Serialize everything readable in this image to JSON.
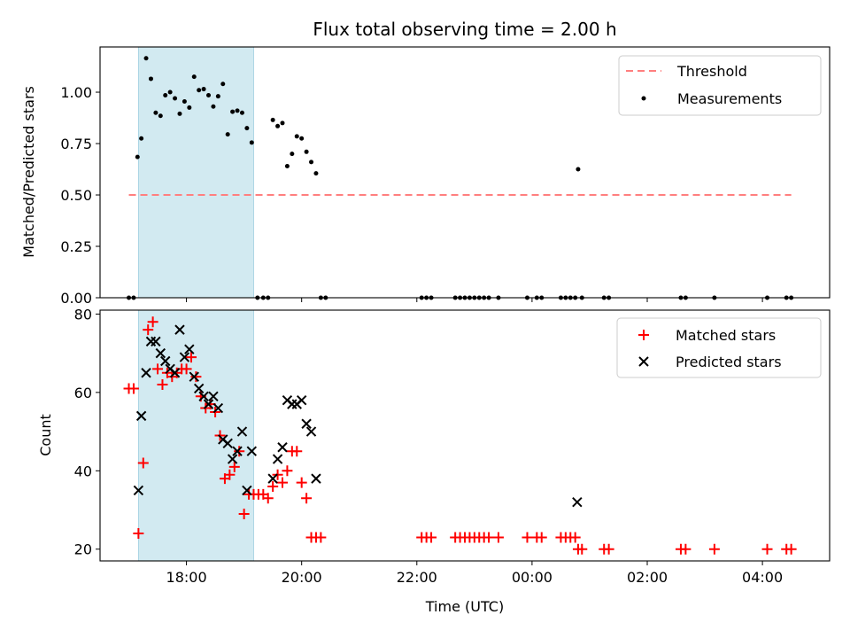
{
  "chart_data": {
    "title": "Flux total observing time = 2.00 h",
    "x_axis": {
      "label": "Time (UTC)",
      "range": [
        "16:30",
        "05:10"
      ],
      "ticks": [
        "18:00",
        "20:00",
        "22:00",
        "00:00",
        "02:00",
        "04:00"
      ]
    },
    "shaded_interval": [
      "17:10",
      "19:10"
    ],
    "shaded_color": "#add8e6",
    "panels": [
      {
        "type": "scatter",
        "ylabel": "Matched/Predicted stars",
        "ylim": [
          0,
          1.22
        ],
        "yticks": [
          "0.00",
          "0.25",
          "0.50",
          "0.75",
          "1.00"
        ],
        "series": [
          {
            "name": "Threshold",
            "kind": "line",
            "color": "#ff7f7f",
            "style": "dashed",
            "x": [
              "17:00",
              "04:30"
            ],
            "y": [
              0.5,
              0.5
            ]
          },
          {
            "name": "Measurements",
            "kind": "dot",
            "color": "#000000",
            "x": [
              "17:00",
              "17:05",
              "17:09",
              "17:13",
              "17:18",
              "17:23",
              "17:28",
              "17:33",
              "17:38",
              "17:43",
              "17:48",
              "17:53",
              "17:58",
              "18:03",
              "18:08",
              "18:13",
              "18:18",
              "18:23",
              "18:28",
              "18:33",
              "18:38",
              "18:43",
              "18:48",
              "18:53",
              "18:58",
              "19:03",
              "19:08",
              "19:14",
              "19:20",
              "19:25",
              "19:30",
              "19:35",
              "19:40",
              "19:45",
              "19:50",
              "19:55",
              "20:00",
              "20:05",
              "20:10",
              "20:15",
              "20:20",
              "20:25",
              "22:05",
              "22:10",
              "22:15",
              "22:40",
              "22:45",
              "22:50",
              "22:55",
              "23:00",
              "23:05",
              "23:10",
              "23:15",
              "23:25",
              "23:55",
              "00:05",
              "00:10",
              "00:30",
              "00:35",
              "00:40",
              "00:45",
              "00:48",
              "00:52",
              "01:15",
              "01:20",
              "02:35",
              "02:40",
              "03:10",
              "04:05",
              "04:25",
              "04:30"
            ],
            "y": [
              0,
              0,
              0.685,
              0.775,
              1.165,
              1.065,
              0.9,
              0.885,
              0.985,
              1.0,
              0.97,
              0.895,
              0.955,
              0.925,
              1.075,
              1.01,
              1.015,
              0.985,
              0.93,
              0.98,
              1.04,
              0.795,
              0.905,
              0.91,
              0.9,
              0.825,
              0.755,
              0,
              0,
              0,
              0.865,
              0.835,
              0.85,
              0.64,
              0.7,
              0.785,
              0.775,
              0.71,
              0.66,
              0.605,
              0,
              0,
              0,
              0,
              0,
              0,
              0,
              0,
              0,
              0,
              0,
              0,
              0,
              0,
              0,
              0,
              0,
              0,
              0,
              0,
              0,
              0.625,
              0,
              0,
              0,
              0,
              0,
              0,
              0,
              0,
              0
            ]
          }
        ]
      },
      {
        "type": "scatter",
        "ylabel": "Count",
        "ylim": [
          17,
          81
        ],
        "yticks": [
          "20",
          "40",
          "60",
          "80"
        ],
        "series": [
          {
            "name": "Matched stars",
            "kind": "plus",
            "color": "#ff0000",
            "x": [
              "17:00",
              "17:05",
              "17:10",
              "17:15",
              "17:20",
              "17:25",
              "17:30",
              "17:35",
              "17:40",
              "17:45",
              "17:50",
              "17:55",
              "18:00",
              "18:05",
              "18:10",
              "18:15",
              "18:20",
              "18:25",
              "18:30",
              "18:35",
              "18:40",
              "18:45",
              "18:50",
              "18:55",
              "19:00",
              "19:05",
              "19:10",
              "19:15",
              "19:20",
              "19:25",
              "19:30",
              "19:35",
              "19:40",
              "19:45",
              "19:50",
              "19:55",
              "20:00",
              "20:05",
              "20:10",
              "20:15",
              "20:20",
              "22:05",
              "22:10",
              "22:15",
              "22:40",
              "22:45",
              "22:50",
              "22:55",
              "23:00",
              "23:05",
              "23:10",
              "23:15",
              "23:25",
              "23:55",
              "00:05",
              "00:10",
              "00:30",
              "00:35",
              "00:40",
              "00:45",
              "00:48",
              "00:52",
              "01:15",
              "01:20",
              "02:35",
              "02:40",
              "03:10",
              "04:05",
              "04:25",
              "04:30"
            ],
            "y": [
              61,
              61,
              24,
              42,
              76,
              78,
              66,
              62,
              65,
              64,
              65,
              66,
              66,
              69,
              64,
              59,
              56,
              57,
              55,
              49,
              38,
              39,
              41,
              45,
              29,
              34,
              34,
              34,
              34,
              33,
              36,
              39,
              37,
              40,
              45,
              45,
              37,
              33,
              23,
              23,
              23,
              23,
              23,
              23,
              23,
              23,
              23,
              23,
              23,
              23,
              23,
              23,
              23,
              23,
              23,
              23,
              23,
              23,
              23,
              23,
              20,
              20,
              20,
              20,
              20,
              20,
              20,
              20,
              20,
              20
            ]
          },
          {
            "name": "Predicted stars",
            "kind": "x",
            "color": "#000000",
            "x": [
              "17:10",
              "17:13",
              "17:18",
              "17:23",
              "17:28",
              "17:33",
              "17:38",
              "17:43",
              "17:48",
              "17:53",
              "17:58",
              "18:03",
              "18:08",
              "18:13",
              "18:18",
              "18:23",
              "18:28",
              "18:33",
              "18:38",
              "18:43",
              "18:48",
              "18:53",
              "18:58",
              "19:03",
              "19:08",
              "19:30",
              "19:35",
              "19:40",
              "19:45",
              "19:50",
              "19:55",
              "20:00",
              "20:05",
              "20:10",
              "20:15",
              "00:47"
            ],
            "y": [
              35,
              54,
              65,
              73,
              73,
              70,
              68,
              66,
              65,
              76,
              69,
              71,
              64,
              61,
              59,
              57,
              59,
              56,
              48,
              47,
              43,
              45,
              50,
              35,
              45,
              38,
              43,
              46,
              58,
              57,
              57,
              58,
              52,
              50,
              38,
              32
            ]
          }
        ]
      }
    ]
  }
}
